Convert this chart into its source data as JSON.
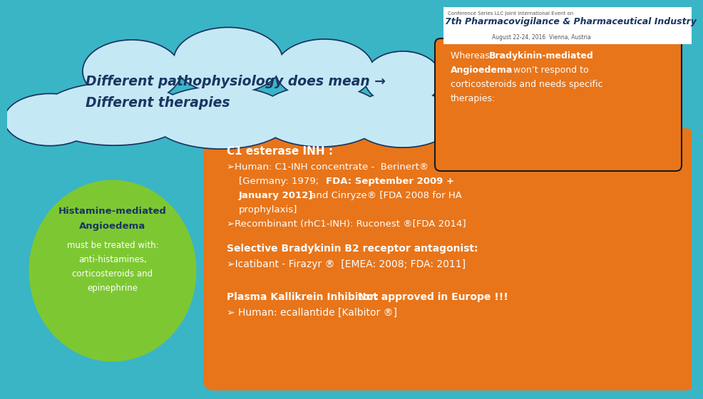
{
  "bg_color": "#3ab5c6",
  "title_text1": "Different pathophysiology does mean →",
  "title_text2": "Different therapies",
  "title_color": "#1a3561",
  "cloud_fill": "#c5e8f5",
  "cloud_edge": "#1a3561",
  "orange_color": "#e8751a",
  "green_color": "#7dc832",
  "header_small": "Conference Series LLC Joint International Event on",
  "header_big": "7th Pharmacovigilance & Pharmaceutical Industry",
  "header_date": "August 22-24, 2016  Vienna, Austria",
  "header_big_color": "#1a3561",
  "header_small_color": "#555555"
}
